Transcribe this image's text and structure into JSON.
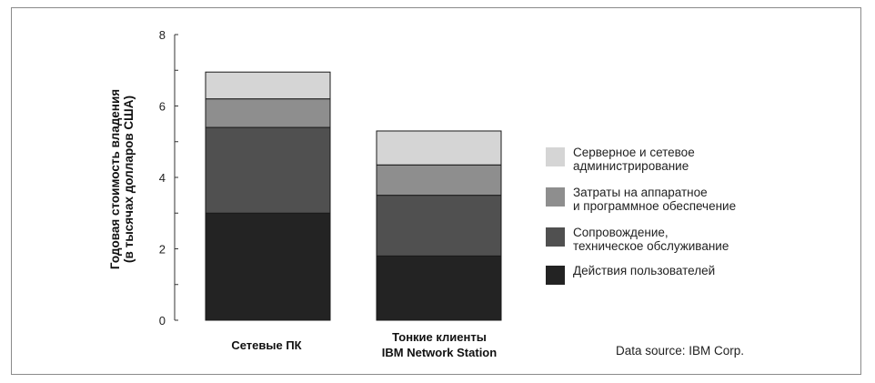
{
  "chart_data": {
    "type": "bar",
    "stacked": true,
    "categories": [
      "Сетевые ПК",
      "Тонкие клиенты\nIBM Network Station"
    ],
    "series": [
      {
        "name": "Действия пользователей",
        "values": [
          3.0,
          1.8
        ],
        "color": "#232323"
      },
      {
        "name": "Сопровождение,\nтехническое обслуживание",
        "values": [
          2.4,
          1.7
        ],
        "color": "#505050"
      },
      {
        "name": "Затраты на аппаратное\nи программное обеспечение",
        "values": [
          0.8,
          0.85
        ],
        "color": "#8e8e8e"
      },
      {
        "name": "Серверное и сетевое\nадминистрирование",
        "values": [
          0.75,
          0.95
        ],
        "color": "#d5d5d5"
      }
    ],
    "ylabel": "Годовая стоимость владения\n(в тысячах долларов США)",
    "xlabel": "",
    "ylim": [
      0,
      8
    ],
    "yticks": [
      0,
      2,
      4,
      6,
      8
    ],
    "legend_position": "right",
    "grid": false
  },
  "source_text": "Data source: IBM Corp."
}
